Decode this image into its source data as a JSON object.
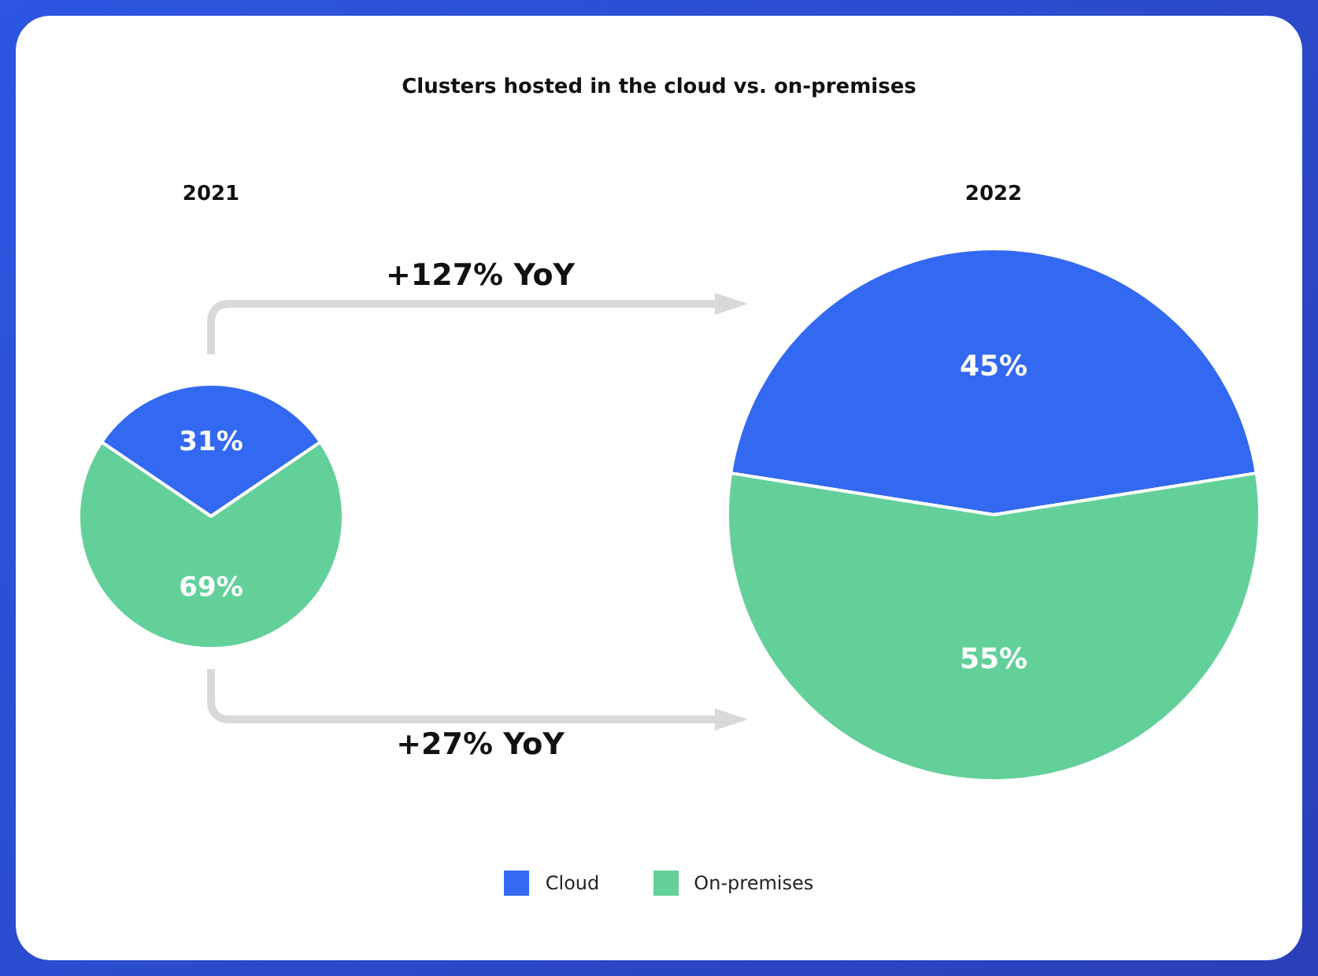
{
  "chart_data": {
    "type": "pie",
    "title": "Clusters hosted in the cloud vs. on-premises",
    "categories": [
      "Cloud",
      "On-premises"
    ],
    "colors": [
      "#3369f0",
      "#63d09a"
    ],
    "legend": "bottom",
    "annotations": [
      "+127% YoY",
      "+27% YoY"
    ],
    "series": [
      {
        "name": "2021",
        "values": [
          31,
          69
        ],
        "value_labels": [
          "31%",
          "69%"
        ]
      },
      {
        "name": "2022",
        "values": [
          45,
          55
        ],
        "value_labels": [
          "45%",
          "55%"
        ]
      }
    ]
  }
}
